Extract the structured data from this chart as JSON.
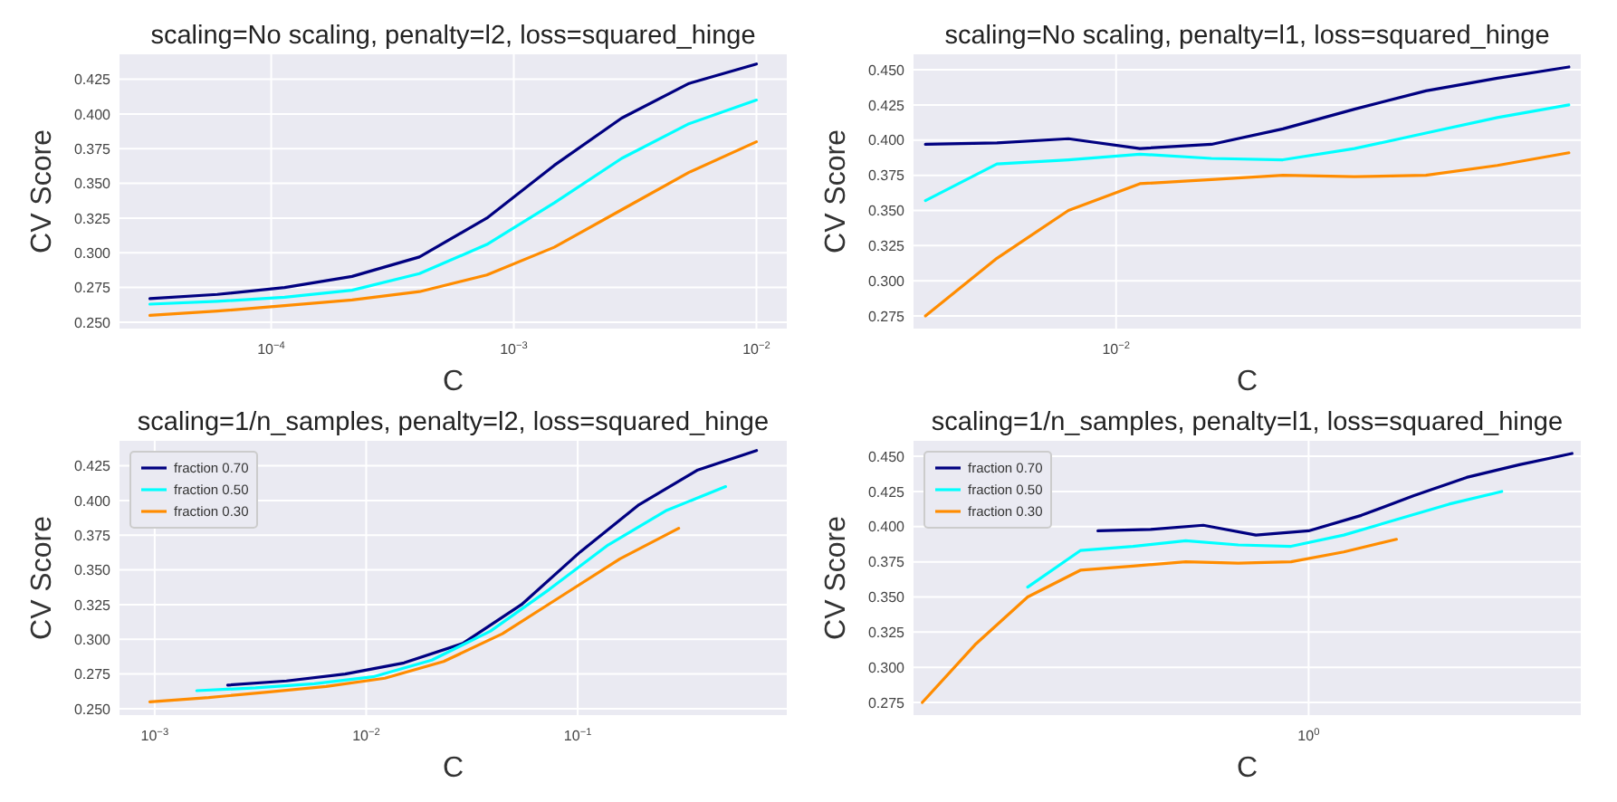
{
  "chart_data": [
    {
      "type": "line",
      "title": "scaling=No scaling, penalty=l2, loss=squared_hinge",
      "xlabel": "C",
      "ylabel": "CV Score",
      "log": "x",
      "grid": true,
      "legend": false,
      "xlim": [
        2.37e-05,
        0.01334
      ],
      "xticks": [
        {
          "value": 0.0001,
          "label": "10$^{−4}$"
        },
        {
          "value": 0.001,
          "label": "10$^{−3}$"
        },
        {
          "value": 0.01,
          "label": "10$^{−2}$"
        }
      ],
      "ylim": [
        0.2454,
        0.443
      ],
      "yticks": [
        {
          "value": 0.25,
          "label": "0.250"
        },
        0.275,
        {
          "value": 0.3,
          "label": "0.300"
        },
        0.325,
        {
          "value": 0.35,
          "label": "0.350"
        },
        0.375,
        {
          "value": 0.4,
          "label": "0.400"
        },
        0.425
      ],
      "series": [
        {
          "color": "#000080",
          "x": [
            3.162e-05,
            5.995e-05,
            0.0001136,
            0.0002154,
            0.0004084,
            0.0007743,
            0.001468,
            0.002783,
            0.005275,
            0.01
          ],
          "values": [
            0.267,
            0.27,
            0.275,
            0.283,
            0.297,
            0.325,
            0.363,
            0.397,
            0.422,
            0.436
          ]
        },
        {
          "color": "#00ffff",
          "x": [
            3.162e-05,
            5.995e-05,
            0.0001136,
            0.0002154,
            0.0004084,
            0.0007743,
            0.001468,
            0.002783,
            0.005275,
            0.01
          ],
          "values": [
            0.263,
            0.265,
            0.268,
            0.273,
            0.285,
            0.306,
            0.336,
            0.368,
            0.393,
            0.41
          ]
        },
        {
          "color": "#ff8c00",
          "x": [
            3.162e-05,
            5.995e-05,
            0.0001136,
            0.0002154,
            0.0004084,
            0.0007743,
            0.001468,
            0.002783,
            0.005275,
            0.01
          ],
          "values": [
            0.255,
            0.258,
            0.262,
            0.266,
            0.272,
            0.284,
            0.304,
            0.331,
            0.358,
            0.38
          ]
        }
      ]
    },
    {
      "type": "line",
      "title": "scaling=No scaling, penalty=l1, loss=squared_hinge",
      "xlabel": "C",
      "ylabel": "CV Score",
      "log": "x",
      "grid": true,
      "legend": false,
      "categories": [
        null,
        null,
        null,
        null,
        null,
        null,
        null,
        null,
        "10$^{−2}$",
        null,
        null,
        null,
        null,
        null,
        null,
        null,
        null,
        null,
        null,
        null,
        null,
        null,
        null,
        null,
        null,
        null,
        null,
        null
      ],
      "ylim": [
        0.266,
        0.461
      ],
      "yticks": [
        0.275,
        {
          "value": 0.3,
          "label": "0.300"
        },
        0.325,
        {
          "value": 0.35,
          "label": "0.350"
        },
        0.375,
        {
          "value": 0.4,
          "label": "0.400"
        },
        0.425,
        {
          "value": 0.45,
          "label": "0.450"
        }
      ],
      "series": [
        {
          "color": "#000080",
          "values": [
            0.397,
            null,
            null,
            0.398,
            null,
            null,
            0.401,
            null,
            null,
            0.394,
            null,
            null,
            0.397,
            null,
            null,
            0.408,
            null,
            null,
            0.422,
            null,
            null,
            0.435,
            null,
            null,
            0.444,
            null,
            null,
            0.452
          ]
        },
        {
          "color": "#00ffff",
          "values": [
            0.357,
            null,
            null,
            0.383,
            null,
            null,
            0.386,
            null,
            null,
            0.39,
            null,
            null,
            0.387,
            null,
            null,
            0.386,
            null,
            null,
            0.394,
            null,
            null,
            0.405,
            null,
            null,
            0.416,
            null,
            null,
            0.425
          ]
        },
        {
          "color": "#ff8c00",
          "values": [
            0.275,
            null,
            null,
            0.316,
            null,
            null,
            0.35,
            null,
            null,
            0.369,
            null,
            null,
            0.372,
            null,
            null,
            0.375,
            null,
            null,
            0.374,
            null,
            null,
            0.375,
            null,
            null,
            0.382,
            null,
            null,
            0.391
          ]
        }
      ]
    },
    {
      "type": "line",
      "title": "scaling=1/n_samples, penalty=l2, loss=squared_hinge",
      "xlabel": "C",
      "ylabel": "CV Score",
      "log": "x",
      "grid": true,
      "legend": "top left",
      "xlim": [
        0.000682,
        0.973
      ],
      "xticks": [
        {
          "value": 0.001,
          "label": "10$^{−3}$"
        },
        {
          "value": 0.01,
          "label": "10$^{−2}$"
        },
        {
          "value": 0.1,
          "label": "10$^{−1}$"
        }
      ],
      "ylim": [
        0.2454,
        0.443
      ],
      "yticks": [
        {
          "value": 0.25,
          "label": "0.250"
        },
        0.275,
        {
          "value": 0.3,
          "label": "0.300"
        },
        0.325,
        {
          "value": 0.35,
          "label": "0.350"
        },
        0.375,
        {
          "value": 0.4,
          "label": "0.400"
        },
        0.425
      ],
      "series": [
        {
          "name": "fraction 0.70",
          "color": "#000080",
          "x": [
            0.002214,
            0.004197,
            0.007952,
            0.01508,
            0.02859,
            0.0542,
            0.1028,
            0.1948,
            0.3693,
            0.7
          ],
          "values": [
            0.267,
            0.27,
            0.275,
            0.283,
            0.297,
            0.325,
            0.363,
            0.397,
            0.422,
            0.436
          ]
        },
        {
          "name": "fraction 0.50",
          "color": "#00ffff",
          "x": [
            0.001581,
            0.002998,
            0.00568,
            0.01077,
            0.02042,
            0.03872,
            0.0734,
            0.1392,
            0.2638,
            0.5
          ],
          "values": [
            0.263,
            0.265,
            0.268,
            0.273,
            0.285,
            0.306,
            0.336,
            0.368,
            0.393,
            0.41
          ]
        },
        {
          "name": "fraction 0.30",
          "color": "#ff8c00",
          "x": [
            0.0009487,
            0.001799,
            0.003408,
            0.006462,
            0.01225,
            0.02323,
            0.04404,
            0.08349,
            0.1583,
            0.3
          ],
          "values": [
            0.255,
            0.258,
            0.262,
            0.266,
            0.272,
            0.284,
            0.304,
            0.331,
            0.358,
            0.38
          ]
        }
      ]
    },
    {
      "type": "line",
      "title": "scaling=1/n_samples, penalty=l1, loss=squared_hinge",
      "xlabel": "C",
      "ylabel": "CV Score",
      "log": "x",
      "grid": true,
      "legend": "top left",
      "categories": [
        null,
        null,
        null,
        null,
        null,
        null,
        null,
        null,
        null,
        null,
        null,
        null,
        null,
        null,
        null,
        null,
        null,
        null,
        null,
        null,
        null,
        null,
        "10$^{0}$",
        null,
        null,
        null,
        null,
        null,
        null,
        null,
        null,
        null,
        null,
        null,
        null,
        null,
        null,
        null
      ],
      "ylim": [
        0.266,
        0.461
      ],
      "yticks": [
        0.275,
        {
          "value": 0.3,
          "label": "0.300"
        },
        0.325,
        {
          "value": 0.35,
          "label": "0.350"
        },
        0.375,
        {
          "value": 0.4,
          "label": "0.400"
        },
        0.425,
        {
          "value": 0.45,
          "label": "0.450"
        }
      ],
      "series": [
        {
          "name": "fraction 0.70",
          "color": "#000080",
          "values": [
            null,
            null,
            null,
            null,
            null,
            null,
            null,
            null,
            null,
            null,
            0.397,
            null,
            null,
            0.398,
            null,
            null,
            0.401,
            null,
            null,
            0.394,
            null,
            null,
            0.397,
            null,
            null,
            0.408,
            null,
            null,
            0.422,
            null,
            null,
            0.435,
            null,
            null,
            0.444,
            null,
            null,
            0.452
          ]
        },
        {
          "name": "fraction 0.50",
          "color": "#00ffff",
          "values": [
            null,
            null,
            null,
            null,
            null,
            null,
            0.357,
            null,
            null,
            0.383,
            null,
            null,
            0.386,
            null,
            null,
            0.39,
            null,
            null,
            0.387,
            null,
            null,
            0.386,
            null,
            null,
            0.394,
            null,
            null,
            0.405,
            null,
            null,
            0.416,
            null,
            null,
            0.425,
            null,
            null,
            null,
            null
          ]
        },
        {
          "name": "fraction 0.30",
          "color": "#ff8c00",
          "values": [
            0.275,
            null,
            null,
            0.316,
            null,
            null,
            0.35,
            null,
            null,
            0.369,
            null,
            null,
            0.372,
            null,
            null,
            0.375,
            null,
            null,
            0.374,
            null,
            null,
            0.375,
            null,
            null,
            0.382,
            null,
            null,
            0.391,
            null,
            null,
            null,
            null,
            null,
            null,
            null,
            null,
            null,
            null
          ]
        }
      ]
    }
  ]
}
